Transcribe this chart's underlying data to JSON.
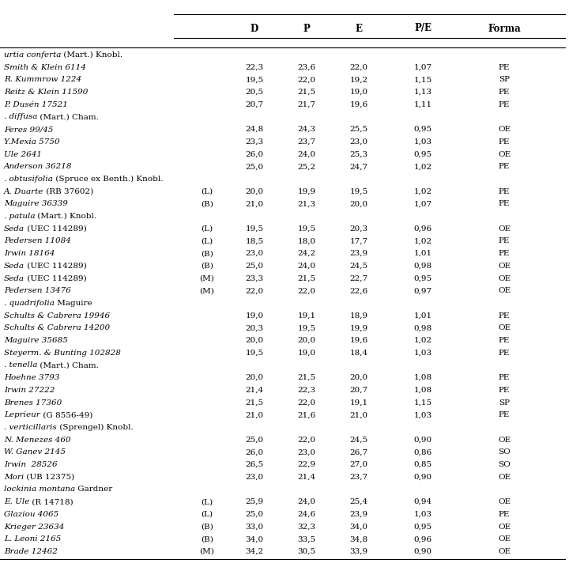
{
  "rows": [
    {
      "col0_italic": "urtia conferta",
      "col0_normal": " (Mart.) Knobl.",
      "col1": "",
      "D": "",
      "P": "",
      "E": "",
      "PE": "",
      "Forma": "",
      "type": "header"
    },
    {
      "col0_italic": "Smith & Klein 6114",
      "col0_normal": "",
      "col1": "",
      "D": "22,3",
      "P": "23,6",
      "E": "22,0",
      "PE": "1,07",
      "Forma": "PE",
      "type": "data"
    },
    {
      "col0_italic": "R. Kummrow 1224",
      "col0_normal": "",
      "col1": "",
      "D": "19,5",
      "P": "22,0",
      "E": "19,2",
      "PE": "1,15",
      "Forma": "SP",
      "type": "data"
    },
    {
      "col0_italic": "Reitz & Klein 11590",
      "col0_normal": "",
      "col1": "",
      "D": "20,5",
      "P": "21,5",
      "E": "19,0",
      "PE": "1,13",
      "Forma": "PE",
      "type": "data"
    },
    {
      "col0_italic": "P. Dusén 17521",
      "col0_normal": "",
      "col1": "",
      "D": "20,7",
      "P": "21,7",
      "E": "19,6",
      "PE": "1,11",
      "Forma": "PE",
      "type": "data"
    },
    {
      "col0_italic": ". diffusa",
      "col0_normal": " (Mart.) Cham.",
      "col1": "",
      "D": "",
      "P": "",
      "E": "",
      "PE": "",
      "Forma": "",
      "type": "header"
    },
    {
      "col0_italic": "Feres 99/45",
      "col0_normal": "",
      "col1": "",
      "D": "24,8",
      "P": "24,3",
      "E": "25,5",
      "PE": "0,95",
      "Forma": "OE",
      "type": "data"
    },
    {
      "col0_italic": "Y.Mexia 5750",
      "col0_normal": "",
      "col1": "",
      "D": "23,3",
      "P": "23,7",
      "E": "23,0",
      "PE": "1,03",
      "Forma": "PE",
      "type": "data"
    },
    {
      "col0_italic": "Ule 2641",
      "col0_normal": "",
      "col1": "",
      "D": "26,0",
      "P": "24,0",
      "E": "25,3",
      "PE": "0,95",
      "Forma": "OE",
      "type": "data"
    },
    {
      "col0_italic": "Anderson 36218",
      "col0_normal": "",
      "col1": "",
      "D": "25,0",
      "P": "25,2",
      "E": "24,7",
      "PE": "1,02",
      "Forma": "PE",
      "type": "data"
    },
    {
      "col0_italic": ". obtusifolia",
      "col0_normal": " (Spruce ex Benth.) Knobl.",
      "col1": "",
      "D": "",
      "P": "",
      "E": "",
      "PE": "",
      "Forma": "",
      "type": "header"
    },
    {
      "col0_italic": "A. Duarte",
      "col0_normal": " (RB 37602)",
      "col1": "(L)",
      "D": "20,0",
      "P": "19,9",
      "E": "19,5",
      "PE": "1,02",
      "Forma": "PE",
      "type": "data"
    },
    {
      "col0_italic": "Maguire 36339",
      "col0_normal": "",
      "col1": "(B)",
      "D": "21,0",
      "P": "21,3",
      "E": "20,0",
      "PE": "1,07",
      "Forma": "PE",
      "type": "data"
    },
    {
      "col0_italic": ". patula",
      "col0_normal": " (Mart.) Knobl.",
      "col1": "",
      "D": "",
      "P": "",
      "E": "",
      "PE": "",
      "Forma": "",
      "type": "header"
    },
    {
      "col0_italic": "Seda",
      "col0_normal": " (UEC 114289)",
      "col1": "(L)",
      "D": "19,5",
      "P": "19,5",
      "E": "20,3",
      "PE": "0,96",
      "Forma": "OE",
      "type": "data"
    },
    {
      "col0_italic": "Pedersen 11084",
      "col0_normal": "",
      "col1": "(L)",
      "D": "18,5",
      "P": "18,0",
      "E": "17,7",
      "PE": "1,02",
      "Forma": "PE",
      "type": "data"
    },
    {
      "col0_italic": "Irwin 18164",
      "col0_normal": "",
      "col1": "(B)",
      "D": "23,0",
      "P": "24,2",
      "E": "23,9",
      "PE": "1,01",
      "Forma": "PE",
      "type": "data"
    },
    {
      "col0_italic": "Seda",
      "col0_normal": " (UEC 114289)",
      "col1": "(B)",
      "D": "25,0",
      "P": "24,0",
      "E": "24,5",
      "PE": "0,98",
      "Forma": "OE",
      "type": "data"
    },
    {
      "col0_italic": "Seda",
      "col0_normal": " (UEC 114289)",
      "col1": "(M)",
      "D": "23,3",
      "P": "21,5",
      "E": "22,7",
      "PE": "0,95",
      "Forma": "OE",
      "type": "data"
    },
    {
      "col0_italic": "Pedersen 13476",
      "col0_normal": "",
      "col1": "(M)",
      "D": "22,0",
      "P": "22,0",
      "E": "22,6",
      "PE": "0,97",
      "Forma": "OE",
      "type": "data"
    },
    {
      "col0_italic": ". quadrifolia",
      "col0_normal": " Maguire",
      "col1": "",
      "D": "",
      "P": "",
      "E": "",
      "PE": "",
      "Forma": "",
      "type": "header"
    },
    {
      "col0_italic": "Schults & Cabrera 19946",
      "col0_normal": "",
      "col1": "",
      "D": "19,0",
      "P": "19,1",
      "E": "18,9",
      "PE": "1,01",
      "Forma": "PE",
      "type": "data"
    },
    {
      "col0_italic": "Schults & Cabrera 14200",
      "col0_normal": "",
      "col1": "",
      "D": "20,3",
      "P": "19,5",
      "E": "19,9",
      "PE": "0,98",
      "Forma": "OE",
      "type": "data"
    },
    {
      "col0_italic": "Maguire 35685",
      "col0_normal": "",
      "col1": "",
      "D": "20,0",
      "P": "20,0",
      "E": "19,6",
      "PE": "1,02",
      "Forma": "PE",
      "type": "data"
    },
    {
      "col0_italic": "Steyerm. & Bunting 102828",
      "col0_normal": "",
      "col1": "",
      "D": "19,5",
      "P": "19,0",
      "E": "18,4",
      "PE": "1,03",
      "Forma": "PE",
      "type": "data"
    },
    {
      "col0_italic": ". tenella",
      "col0_normal": " (Mart.) Cham.",
      "col1": "",
      "D": "",
      "P": "",
      "E": "",
      "PE": "",
      "Forma": "",
      "type": "header"
    },
    {
      "col0_italic": "Hoehne 3793",
      "col0_normal": "",
      "col1": "",
      "D": "20,0",
      "P": "21,5",
      "E": "20,0",
      "PE": "1,08",
      "Forma": "PE",
      "type": "data"
    },
    {
      "col0_italic": "Irwin 27222",
      "col0_normal": "",
      "col1": "",
      "D": "21,4",
      "P": "22,3",
      "E": "20,7",
      "PE": "1,08",
      "Forma": "PE",
      "type": "data"
    },
    {
      "col0_italic": "Brenes 17360",
      "col0_normal": "",
      "col1": "",
      "D": "21,5",
      "P": "22,0",
      "E": "19,1",
      "PE": "1,15",
      "Forma": "SP",
      "type": "data"
    },
    {
      "col0_italic": "Leprieur",
      "col0_normal": " (G 8556-49)",
      "col1": "",
      "D": "21,0",
      "P": "21,6",
      "E": "21,0",
      "PE": "1,03",
      "Forma": "PE",
      "type": "data"
    },
    {
      "col0_italic": ". verticillaris",
      "col0_normal": " (Sprengel) Knobl.",
      "col1": "",
      "D": "",
      "P": "",
      "E": "",
      "PE": "",
      "Forma": "",
      "type": "header"
    },
    {
      "col0_italic": "N. Menezes 460",
      "col0_normal": "",
      "col1": "",
      "D": "25,0",
      "P": "22,0",
      "E": "24,5",
      "PE": "0,90",
      "Forma": "OE",
      "type": "data"
    },
    {
      "col0_italic": "W. Ganev 2145",
      "col0_normal": "",
      "col1": "",
      "D": "26,0",
      "P": "23,0",
      "E": "26,7",
      "PE": "0,86",
      "Forma": "SO",
      "type": "data"
    },
    {
      "col0_italic": "Irwin  28526",
      "col0_normal": "",
      "col1": "",
      "D": "26,5",
      "P": "22,9",
      "E": "27,0",
      "PE": "0,85",
      "Forma": "SO",
      "type": "data"
    },
    {
      "col0_italic": "Mori",
      "col0_normal": " (UB 12375)",
      "col1": "",
      "D": "23,0",
      "P": "21,4",
      "E": "23,7",
      "PE": "0,90",
      "Forma": "OE",
      "type": "data"
    },
    {
      "col0_italic": "lockinia montana",
      "col0_normal": " Gardner",
      "col1": "",
      "D": "",
      "P": "",
      "E": "",
      "PE": "",
      "Forma": "",
      "type": "header"
    },
    {
      "col0_italic": "E. Ule",
      "col0_normal": " (R 14718)",
      "col1": "(L)",
      "D": "25,9",
      "P": "24,0",
      "E": "25,4",
      "PE": "0,94",
      "Forma": "OE",
      "type": "data"
    },
    {
      "col0_italic": "Glaziou 4065",
      "col0_normal": "",
      "col1": "(L)",
      "D": "25,0",
      "P": "24,6",
      "E": "23,9",
      "PE": "1,03",
      "Forma": "PE",
      "type": "data"
    },
    {
      "col0_italic": "Krieger 23634",
      "col0_normal": "",
      "col1": "(B)",
      "D": "33,0",
      "P": "32,3",
      "E": "34,0",
      "PE": "0,95",
      "Forma": "OE",
      "type": "data"
    },
    {
      "col0_italic": "L. Leoni 2165",
      "col0_normal": "",
      "col1": "(B)",
      "D": "34,0",
      "P": "33,5",
      "E": "34,8",
      "PE": "0,96",
      "Forma": "OE",
      "type": "data"
    },
    {
      "col0_italic": "Brade 12462",
      "col0_normal": "",
      "col1": "(M)",
      "D": "34,2",
      "P": "30,5",
      "E": "33,9",
      "PE": "0,90",
      "Forma": "OE",
      "type": "data"
    }
  ],
  "col_headers": [
    "D",
    "P",
    "E",
    "P/E",
    "Forma"
  ],
  "bg_color": "#ffffff",
  "text_color": "#000000",
  "font_size": 7.5,
  "header_font_size": 8.5
}
